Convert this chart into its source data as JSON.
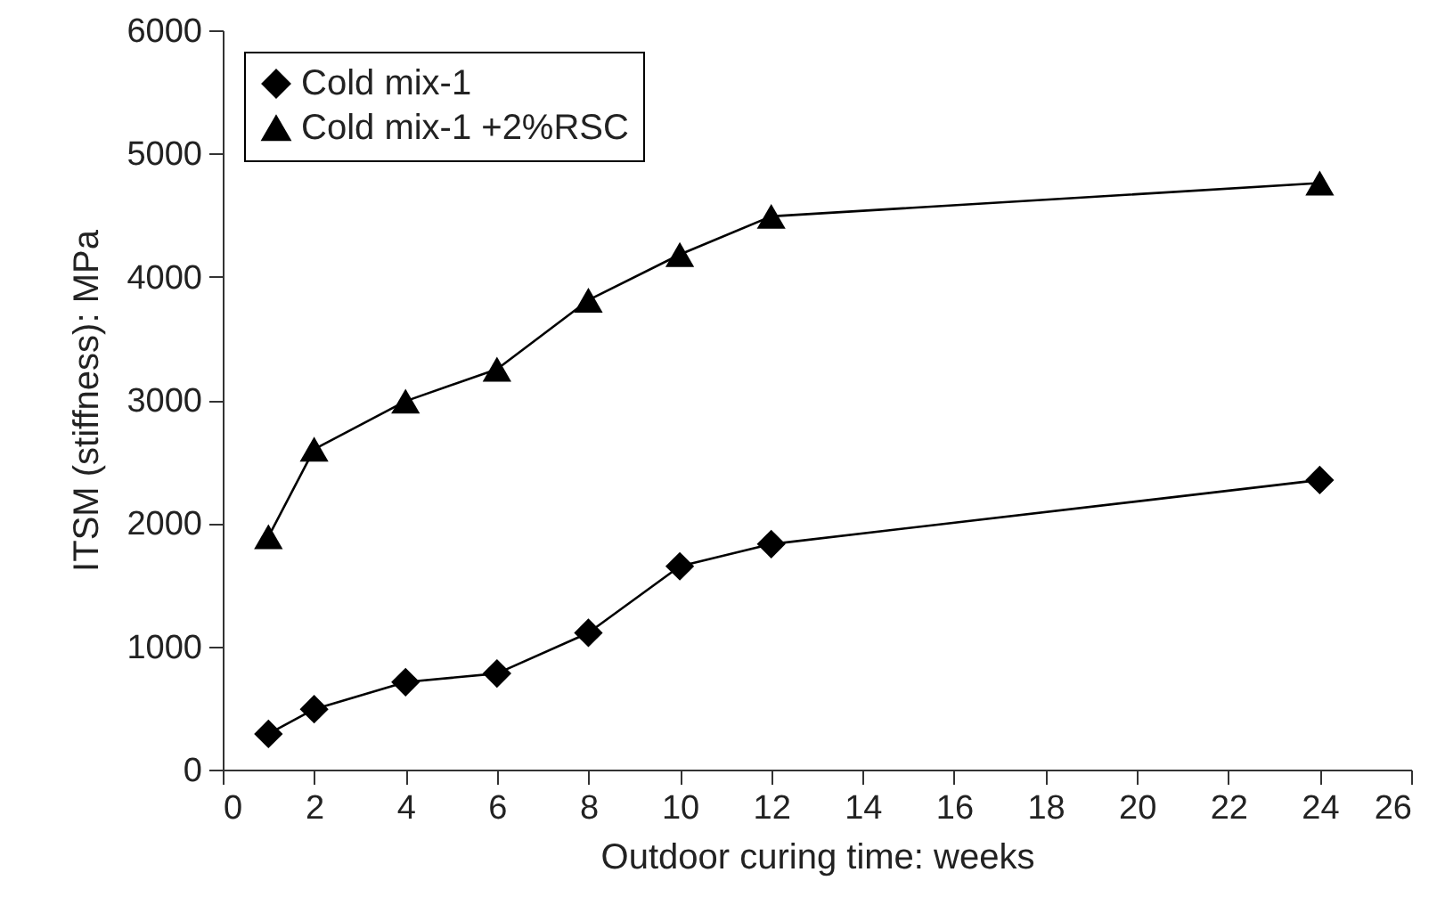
{
  "chart_data": {
    "type": "line",
    "xlabel": "Outdoor curing time: weeks",
    "ylabel": "ITSM (stiffness): MPa",
    "x": [
      1,
      2,
      4,
      6,
      8,
      10,
      12,
      24
    ],
    "series": [
      {
        "name": "Cold mix-1",
        "color": "#000000",
        "marker": "diamond",
        "values": [
          290,
          490,
          710,
          780,
          1110,
          1650,
          1830,
          2350
        ]
      },
      {
        "name": "Cold mix-1 +2%RSC",
        "color": "#000000",
        "marker": "triangle",
        "values": [
          1890,
          2600,
          2990,
          3250,
          3810,
          4180,
          4490,
          4760
        ]
      }
    ],
    "xlim": [
      0,
      26
    ],
    "xticks": [
      0,
      2,
      4,
      6,
      8,
      10,
      12,
      14,
      16,
      18,
      20,
      22,
      24,
      26
    ],
    "ylim": [
      0,
      6000
    ],
    "yticks": [
      0,
      1000,
      2000,
      3000,
      4000,
      5000,
      6000
    ],
    "grid": false,
    "legend": "top left",
    "line_style": "solid"
  }
}
